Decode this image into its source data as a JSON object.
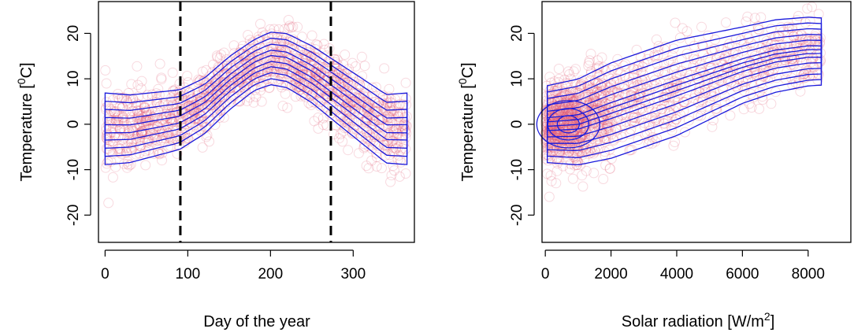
{
  "chart_data": [
    {
      "type": "scatter",
      "xlabel": "Day of the year",
      "ylabel": "Temperature [⁰C]",
      "ylabel_parts": {
        "pre": "Temperature [",
        "sup": "0",
        "post": "C]"
      },
      "xlim": [
        -8,
        374
      ],
      "ylim": [
        -26,
        27
      ],
      "xticks": [
        "0",
        "100",
        "200",
        "300"
      ],
      "xtick_values": [
        0,
        100,
        200,
        300
      ],
      "yticks": [
        "-20",
        "-10",
        "0",
        "10",
        "20"
      ],
      "ytick_values": [
        -20,
        -10,
        0,
        10,
        20
      ],
      "vlines": [
        91,
        273
      ],
      "point_color": "#e0506e",
      "contour_color": "#1a1adc",
      "trend": {
        "x": [
          0,
          30,
          60,
          90,
          120,
          150,
          180,
          200,
          220,
          250,
          280,
          310,
          340,
          365
        ],
        "y": [
          -1,
          -1,
          0,
          1,
          4,
          9,
          13,
          14.5,
          14,
          11,
          7,
          3,
          -1,
          -1
        ]
      },
      "spread": {
        "x": [
          0,
          60,
          120,
          180,
          240,
          300,
          365
        ],
        "y": [
          4.5,
          4,
          3.5,
          3.2,
          3.5,
          4,
          4.5
        ]
      },
      "contour_levels": [
        1.75,
        1.35,
        0.95,
        0.55,
        0.2
      ]
    },
    {
      "type": "scatter",
      "xlabel": "Solar radiation [W/m²]",
      "xlabel_parts": {
        "pre": "Solar radiation [W/m",
        "sup": "2",
        "post": "]"
      },
      "ylabel": "Temperature [⁰C]",
      "ylabel_parts": {
        "pre": "Temperature [",
        "sup": "0",
        "post": "C]"
      },
      "xlim": [
        -100,
        9300
      ],
      "ylim": [
        -26,
        27
      ],
      "xticks": [
        "0",
        "2000",
        "4000",
        "6000",
        "8000"
      ],
      "xtick_values": [
        0,
        2000,
        4000,
        6000,
        8000
      ],
      "yticks": [
        "-20",
        "-10",
        "0",
        "10",
        "20"
      ],
      "ytick_values": [
        -20,
        -10,
        0,
        10,
        20
      ],
      "point_color": "#e0506e",
      "contour_color": "#1a1adc",
      "trend": {
        "x": [
          0,
          1000,
          2000,
          3000,
          4000,
          5000,
          6000,
          7000,
          8000,
          8500
        ],
        "y": [
          0,
          0.5,
          3,
          5.5,
          8,
          10.5,
          13,
          15,
          16,
          16
        ]
      },
      "spread": {
        "x": [
          0,
          2000,
          4000,
          6000,
          8500
        ],
        "y": [
          4,
          5,
          5,
          4,
          3.5
        ]
      },
      "density_peak": {
        "x": 700,
        "y": 0
      },
      "contour_levels": [
        2.1,
        1.75,
        1.4,
        1.05,
        0.7,
        0.35,
        0.12
      ]
    }
  ]
}
